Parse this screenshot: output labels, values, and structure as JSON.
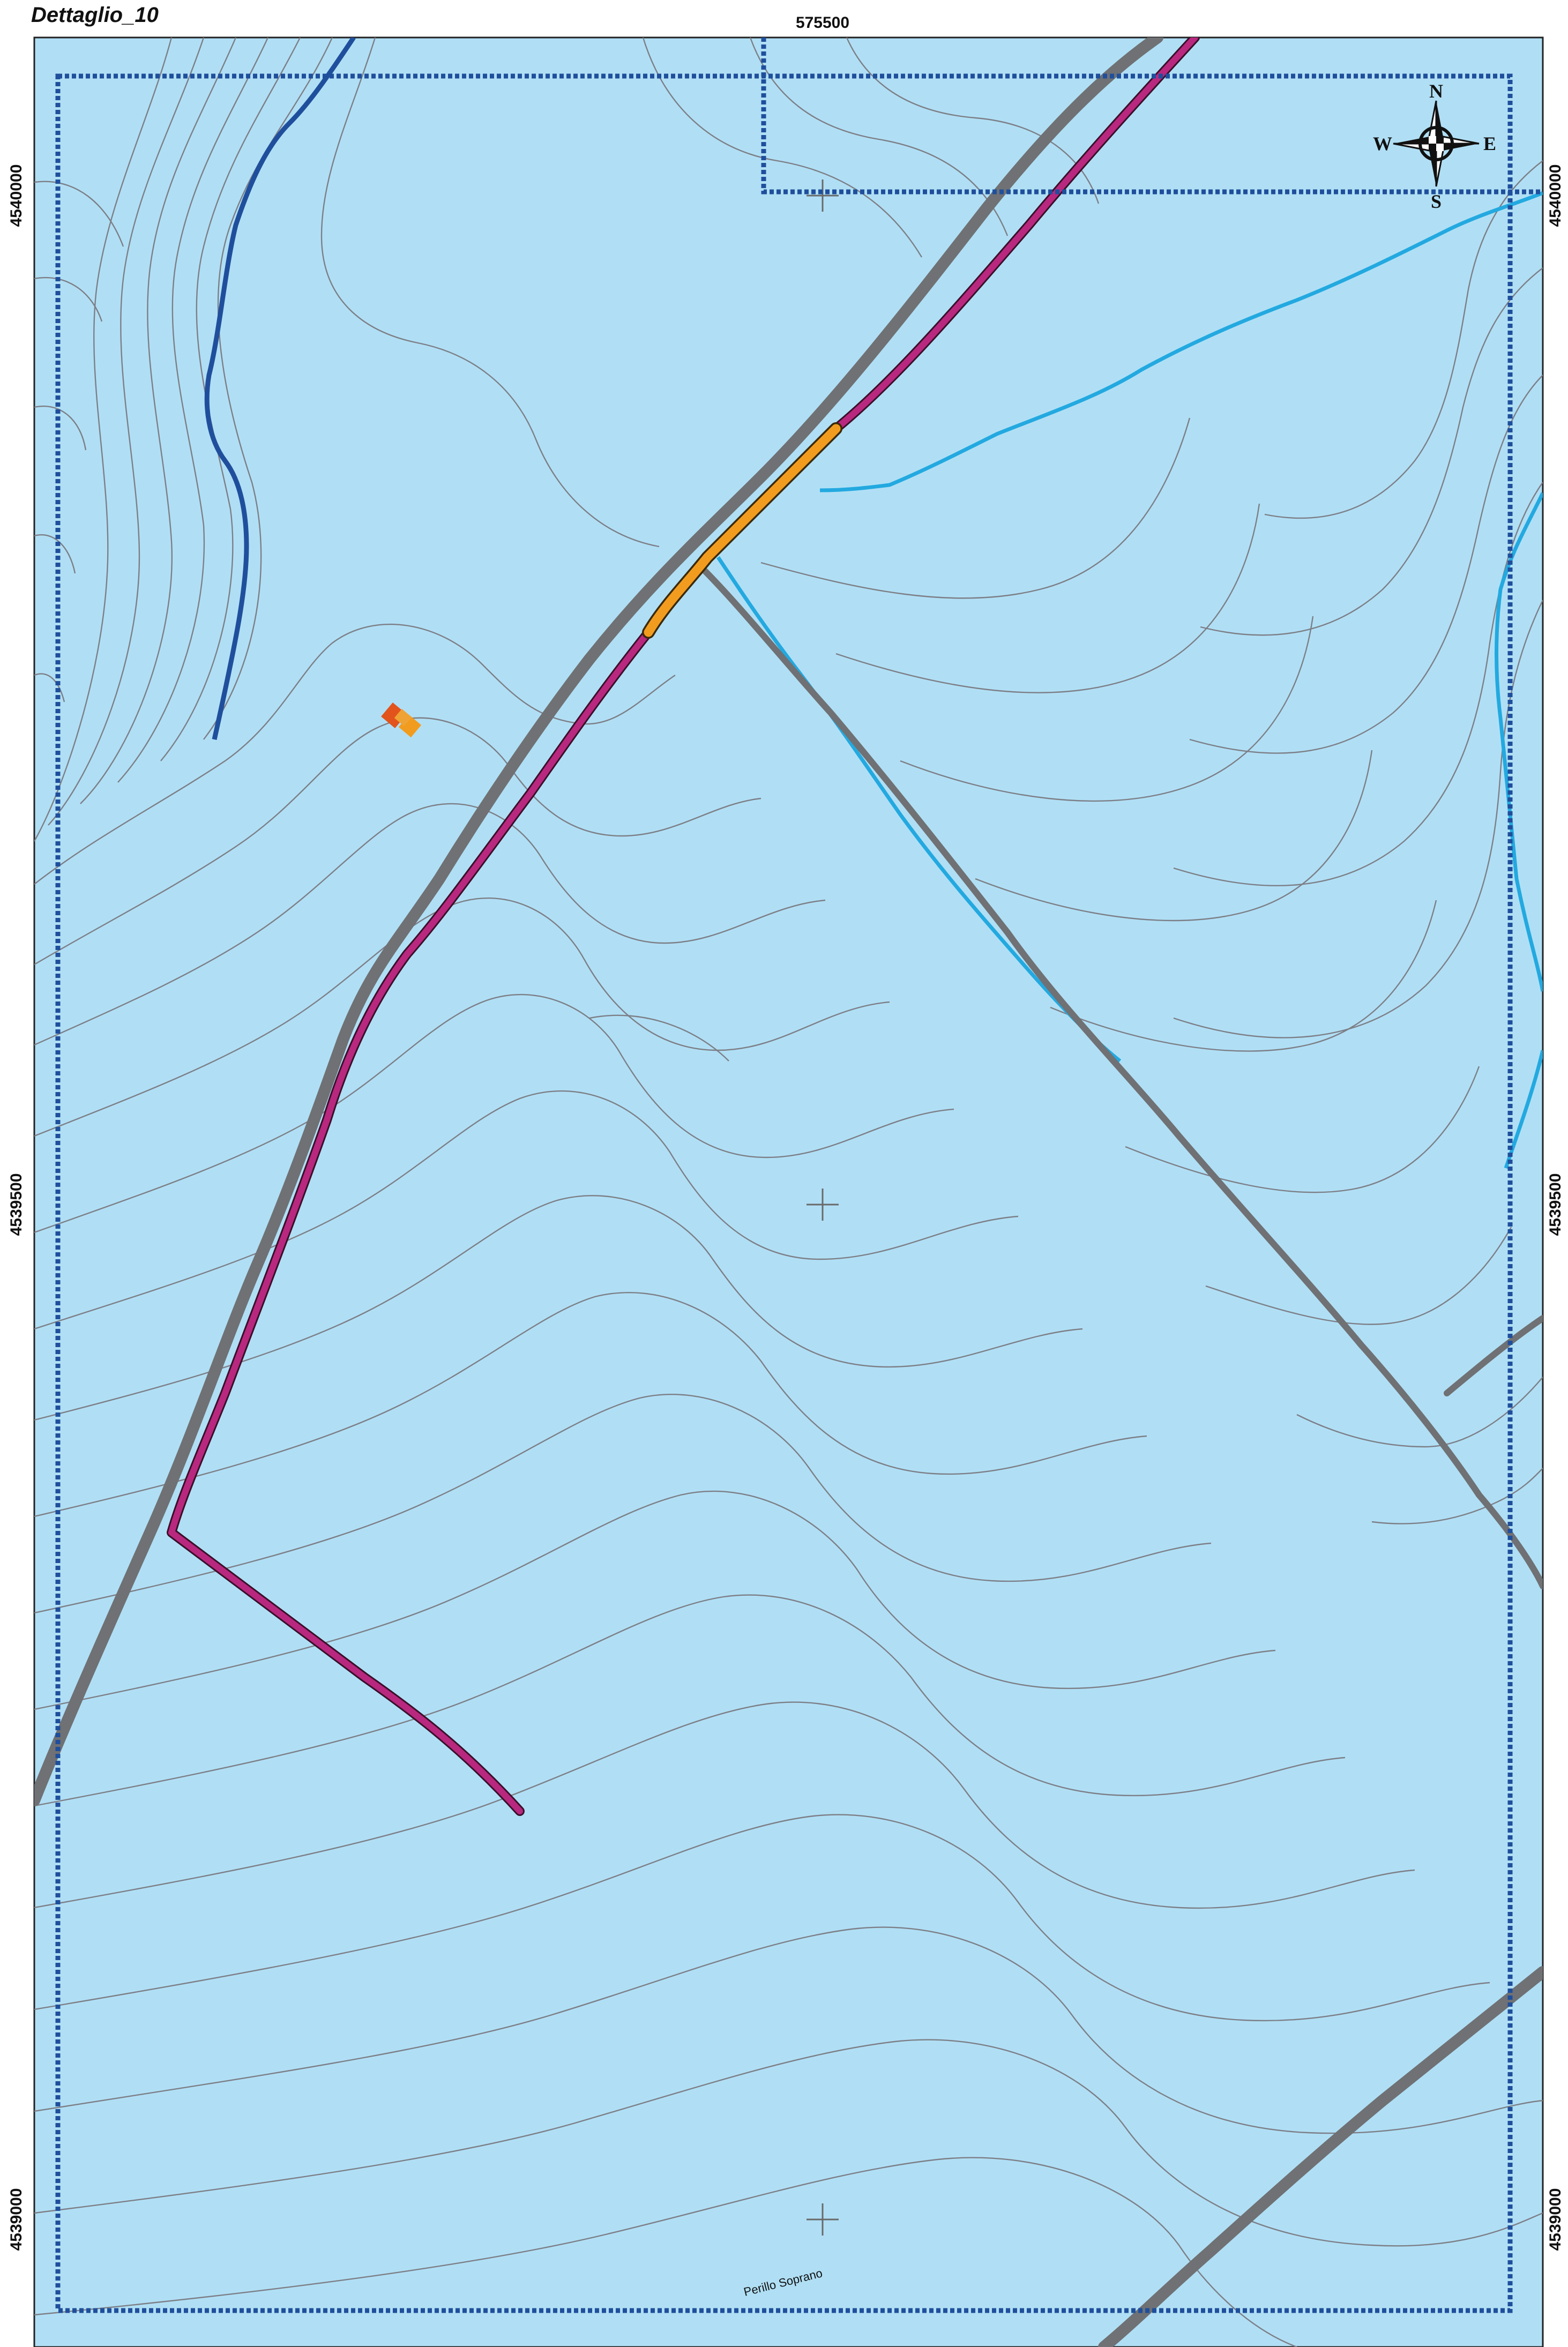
{
  "map": {
    "title": "Dettaglio_10",
    "easting_label": "575500",
    "northing_labels": {
      "n4540000": "4540000",
      "n4539500": "4539500",
      "n4539000": "4539000"
    },
    "place_label": "Perillo Soprano",
    "compass": {
      "n": "N",
      "s": "S",
      "e": "E",
      "w": "W"
    },
    "colors": {
      "background": "#b0dff5",
      "contour": "#7d7f87",
      "road": "#6f7174",
      "pipeline": "#b8287f",
      "pipeline_segment": "#f29c1f",
      "stream_dark": "#1f4f9c",
      "stream_light": "#23a9e0",
      "boundary": "#1f4f9c",
      "building_red": "#e2541b",
      "building_orange": "#f29c1f"
    }
  }
}
